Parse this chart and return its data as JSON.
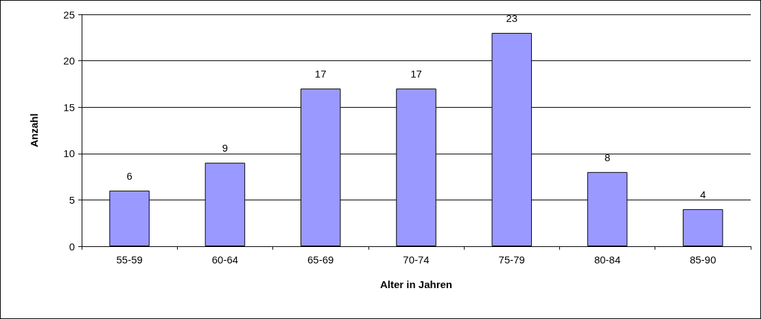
{
  "chart_data": {
    "type": "bar",
    "xlabel": "Alter in Jahren",
    "ylabel": "Anzahl",
    "categories": [
      "55-59",
      "60-64",
      "65-69",
      "70-74",
      "75-79",
      "80-84",
      "85-90"
    ],
    "values": [
      6,
      9,
      17,
      17,
      23,
      8,
      4
    ],
    "color": "#9999ff",
    "ylim": [
      0,
      25
    ],
    "yticks": [
      0,
      5,
      10,
      15,
      20,
      25
    ],
    "grid": "y",
    "data_labels": true
  }
}
